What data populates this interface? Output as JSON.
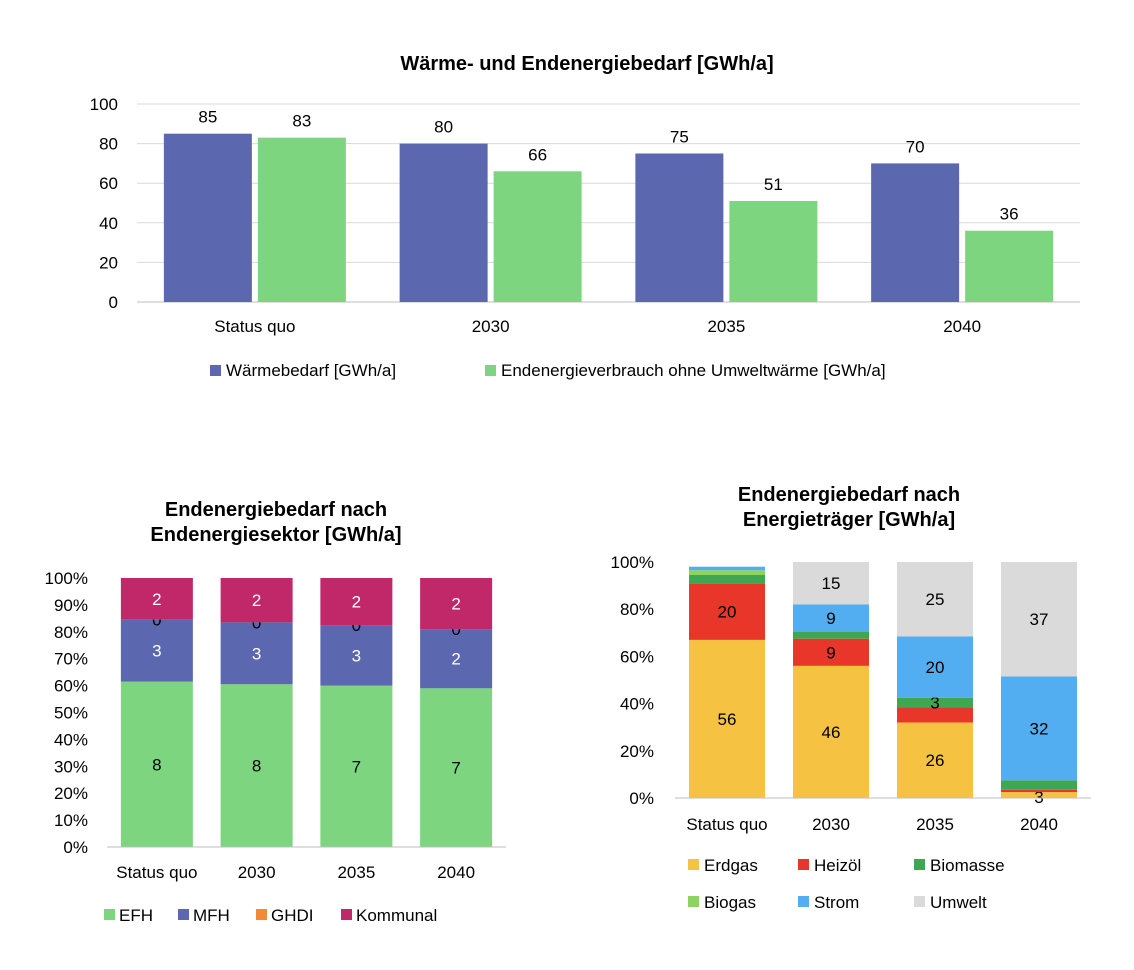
{
  "chart_data": [
    {
      "type": "bar",
      "title": "Wärme- und Endenergiebedarf [GWh/a]",
      "categories": [
        "Status quo",
        "2030",
        "2035",
        "2040"
      ],
      "ylim": [
        0,
        100
      ],
      "yticks": [
        "0",
        "20",
        "40",
        "60",
        "80",
        "100"
      ],
      "grid": true,
      "legend_position": "bottom",
      "series": [
        {
          "name": "Wärmebedarf [GWh/a]",
          "color": "#5b67ae",
          "values": [
            85,
            80,
            75,
            70
          ]
        },
        {
          "name": "Endenergieverbrauch ohne Umweltwärme [GWh/a]",
          "color": "#7dd580",
          "values": [
            83,
            66,
            51,
            36
          ]
        }
      ]
    },
    {
      "type": "bar",
      "stacked": true,
      "percent": true,
      "title_lines": [
        "Endenergiebedarf nach",
        "Endenergiesektor [GWh/a]"
      ],
      "categories": [
        "Status quo",
        "2030",
        "2035",
        "2040"
      ],
      "ylim": [
        0,
        100
      ],
      "yticks": [
        "0%",
        "10%",
        "20%",
        "30%",
        "40%",
        "50%",
        "60%",
        "70%",
        "80%",
        "90%",
        "100%"
      ],
      "legend_position": "bottom",
      "series": [
        {
          "name": "EFH",
          "color": "#7dd580",
          "share": [
            61.5,
            60.5,
            60,
            59
          ],
          "labels": [
            "8",
            "8",
            "7",
            "7"
          ],
          "label_color": "#000000"
        },
        {
          "name": "MFH",
          "color": "#5b67ae",
          "share": [
            23,
            23,
            22.5,
            22
          ],
          "labels": [
            "3",
            "3",
            "3",
            "2"
          ],
          "label_color": "#ffffff"
        },
        {
          "name": "GHDI",
          "color": "#f28a35",
          "share": [
            0,
            0,
            0,
            0
          ],
          "labels": [
            "0",
            "0",
            "0",
            "0"
          ],
          "label_color": "#000000"
        },
        {
          "name": "Kommunal",
          "color": "#c0286a",
          "share": [
            15.5,
            16.5,
            17.5,
            19
          ],
          "labels": [
            "2",
            "2",
            "2",
            "2"
          ],
          "label_color": "#ffffff"
        }
      ]
    },
    {
      "type": "bar",
      "stacked": true,
      "percent": true,
      "title_lines": [
        "Endenergiebedarf nach",
        "Energieträger [GWh/a]"
      ],
      "categories": [
        "Status quo",
        "2030",
        "2035",
        "2040"
      ],
      "ylim": [
        0,
        100
      ],
      "yticks": [
        "0%",
        "20%",
        "40%",
        "60%",
        "80%",
        "100%"
      ],
      "legend_position": "bottom",
      "series": [
        {
          "name": "Erdgas",
          "color": "#f5c242",
          "share": [
            67,
            56,
            32,
            2.5
          ],
          "labels": [
            "56",
            "46",
            "26",
            "3"
          ]
        },
        {
          "name": "Heizöl",
          "color": "#e8362a",
          "share": [
            24,
            11.5,
            6.5,
            1
          ],
          "labels": [
            "20",
            "9",
            "",
            ""
          ]
        },
        {
          "name": "Biomasse",
          "color": "#3fa653",
          "share": [
            3.5,
            3,
            4,
            4
          ],
          "labels": [
            "",
            "",
            "3",
            ""
          ]
        },
        {
          "name": "Biogas",
          "color": "#8fd35f",
          "share": [
            2,
            0,
            0,
            0
          ],
          "labels": [
            "",
            "",
            "",
            ""
          ]
        },
        {
          "name": "Strom",
          "color": "#52aef0",
          "share": [
            1.5,
            11.5,
            26,
            44
          ],
          "labels": [
            "",
            "9",
            "20",
            "32"
          ]
        },
        {
          "name": "Umwelt",
          "color": "#dadada",
          "share": [
            0,
            18,
            31.5,
            48.5
          ],
          "labels": [
            "",
            "15",
            "25",
            "37"
          ]
        }
      ]
    }
  ]
}
